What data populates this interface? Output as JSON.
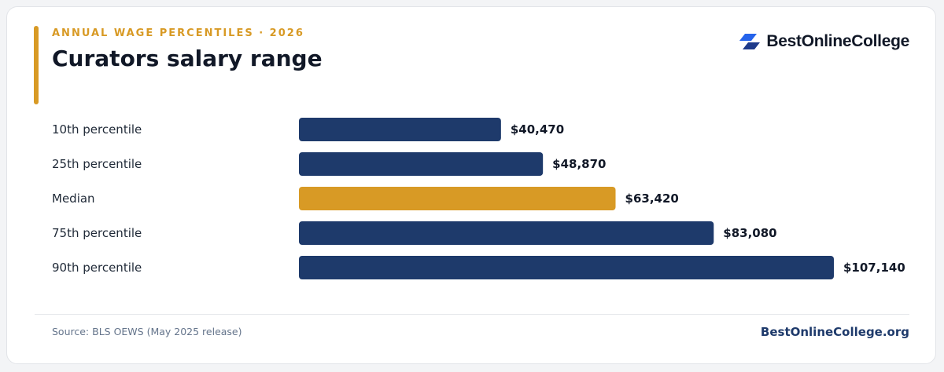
{
  "header": {
    "eyebrow": "ANNUAL WAGE PERCENTILES · 2026",
    "title": "Curators salary range"
  },
  "brand": {
    "name": "BestOnlineCollege",
    "icon": "best-online-college-logo-icon"
  },
  "footer": {
    "source": "Source: BLS OEWS (May 2025 release)",
    "site": "BestOnlineCollege.org"
  },
  "colors": {
    "accent": "#d89a25",
    "bar": "#1e3a6b",
    "highlight": "#d89a25",
    "label": "#1f2937",
    "value": "#111827"
  },
  "chart_data": {
    "type": "bar",
    "orientation": "horizontal",
    "categories": [
      "10th percentile",
      "25th percentile",
      "Median",
      "75th percentile",
      "90th percentile"
    ],
    "values": [
      40470,
      48870,
      63420,
      83080,
      107140
    ],
    "value_labels": [
      "$40,470",
      "$48,870",
      "$63,420",
      "$83,080",
      "$107,140"
    ],
    "highlight_index": 2,
    "xlim": [
      0,
      107140
    ],
    "grid": false,
    "legend": "none"
  }
}
